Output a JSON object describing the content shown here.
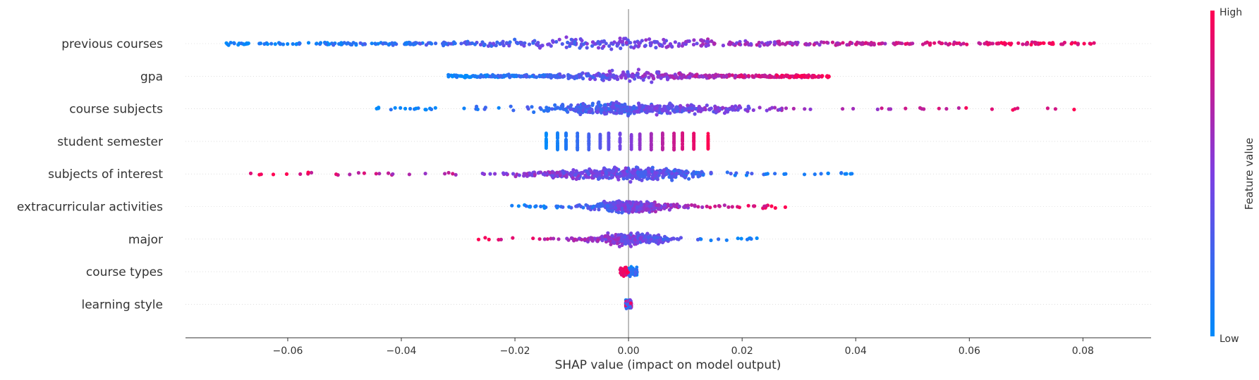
{
  "chart_data": {
    "type": "scatter",
    "subtype": "shap-beeswarm",
    "title": "",
    "xlabel": "SHAP value (impact on model output)",
    "ylabel": "",
    "xlim": [
      -0.078,
      0.092
    ],
    "xticks": [
      -0.06,
      -0.04,
      -0.02,
      0.0,
      0.02,
      0.04,
      0.06,
      0.08
    ],
    "xtick_labels": [
      "−0.06",
      "−0.04",
      "−0.02",
      "0.00",
      "0.02",
      "0.04",
      "0.06",
      "0.08"
    ],
    "zero_line": true,
    "grid": false,
    "colorbar": {
      "label": "Feature value",
      "high_label": "High",
      "low_label": "Low",
      "low_color": "#008bfb",
      "high_color": "#ff0052"
    },
    "features": [
      {
        "name": "previous courses",
        "min": -0.071,
        "max": 0.084,
        "shape": "wide-positive-high",
        "n_points": 520
      },
      {
        "name": "gpa",
        "min": -0.032,
        "max": 0.036,
        "shape": "uniform-positive-high",
        "n_points": 520
      },
      {
        "name": "course subjects",
        "min": -0.045,
        "max": 0.08,
        "shape": "centered-positive-high",
        "n_points": 520
      },
      {
        "name": "student semester",
        "min": -0.0145,
        "max": 0.014,
        "shape": "discrete-positive-high",
        "levels": [
          -0.0145,
          -0.0125,
          -0.011,
          -0.009,
          -0.007,
          -0.005,
          -0.0035,
          -0.0015,
          0.0005,
          0.002,
          0.004,
          0.006,
          0.008,
          0.0095,
          0.0115,
          0.014
        ],
        "n_points": 520
      },
      {
        "name": "subjects of interest",
        "min": -0.067,
        "max": 0.042,
        "shape": "centered-positive-low",
        "n_points": 520
      },
      {
        "name": "extracurricular activities",
        "min": -0.021,
        "max": 0.028,
        "shape": "centered-positive-high",
        "n_points": 520
      },
      {
        "name": "major",
        "min": -0.027,
        "max": 0.023,
        "shape": "narrow-positive-low",
        "n_points": 360
      },
      {
        "name": "course types",
        "min": -0.0015,
        "max": 0.0015,
        "shape": "tiny",
        "n_points": 200
      },
      {
        "name": "learning style",
        "min": -0.0005,
        "max": 0.0005,
        "shape": "tiny",
        "n_points": 200
      }
    ]
  }
}
